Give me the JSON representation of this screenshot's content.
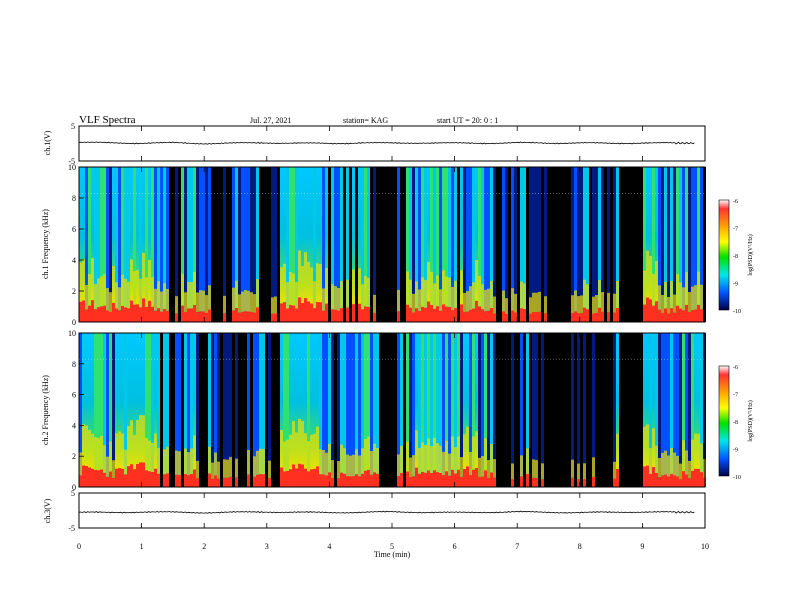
{
  "header": {
    "title": "VLF Spectra",
    "date": "Jul. 27, 2021",
    "station": "station= KAG",
    "start": "start  UT =   20: 0  : 1"
  },
  "chart_data": [
    {
      "type": "line",
      "title": "",
      "ylabel": "ch.1(V)",
      "xlim": [
        0,
        10
      ],
      "ylim": [
        -5,
        5
      ],
      "yticks": [
        "5",
        "-5"
      ],
      "series": [
        {
          "x": [
            0,
            0.5,
            1,
            1.5,
            2,
            2.5,
            3,
            3.5,
            4,
            4.5,
            5,
            5.5,
            6,
            6.5,
            7,
            7.5,
            8,
            8.5,
            9,
            9.5,
            9.85
          ],
          "y": [
            0.3,
            0.2,
            0.1,
            0.2,
            0.0,
            0.1,
            0.2,
            0.1,
            0.0,
            0.2,
            0.1,
            0.2,
            0.1,
            0.1,
            0.2,
            0.1,
            0.2,
            0.0,
            0.2,
            0.1,
            0.1
          ]
        }
      ]
    },
    {
      "type": "heatmap",
      "title": "",
      "ylabel": "ch.1 Frequency (kHz)",
      "xlim": [
        0,
        10
      ],
      "ylim": [
        0,
        10
      ],
      "yticks": [
        "0",
        "2",
        "4",
        "6",
        "8",
        "10"
      ],
      "colorbar": {
        "label": "log(PSD)(V²/Hz)",
        "range": [
          -10,
          -6
        ],
        "ticks": [
          "-6",
          "-7",
          "-8",
          "-9",
          "-10"
        ]
      }
    },
    {
      "type": "heatmap",
      "title": "",
      "ylabel": "ch.2 Frequency (kHz)",
      "xlim": [
        0,
        10
      ],
      "ylim": [
        0,
        10
      ],
      "yticks": [
        "0",
        "2",
        "4",
        "6",
        "8",
        "10"
      ],
      "colorbar": {
        "label": "log(PSD)(V²/Hz)",
        "range": [
          -10,
          -6
        ],
        "ticks": [
          "-6",
          "-7",
          "-8",
          "-9",
          "-10"
        ]
      }
    },
    {
      "type": "line",
      "title": "",
      "ylabel": "ch.3(V)",
      "xlabel": "Time  (min)",
      "xlim": [
        0,
        10
      ],
      "ylim": [
        -5,
        5
      ],
      "yticks": [
        "5",
        "-5"
      ],
      "xticks": [
        "0",
        "1",
        "2",
        "3",
        "4",
        "5",
        "6",
        "7",
        "8",
        "9",
        "10"
      ],
      "series": [
        {
          "x": [
            0,
            0.5,
            1,
            1.5,
            2,
            2.5,
            3,
            3.5,
            4,
            4.5,
            5,
            5.5,
            6,
            6.5,
            7,
            7.5,
            8,
            8.5,
            9,
            9.5,
            9.85
          ],
          "y": [
            -0.5,
            -0.6,
            -0.4,
            -0.5,
            -0.6,
            -0.5,
            -0.4,
            -0.5,
            -0.6,
            -0.5,
            -0.4,
            -0.5,
            -0.6,
            -0.5,
            -0.4,
            -0.5,
            -0.6,
            -0.5,
            -0.4,
            -0.5,
            -0.5
          ]
        }
      ]
    }
  ]
}
